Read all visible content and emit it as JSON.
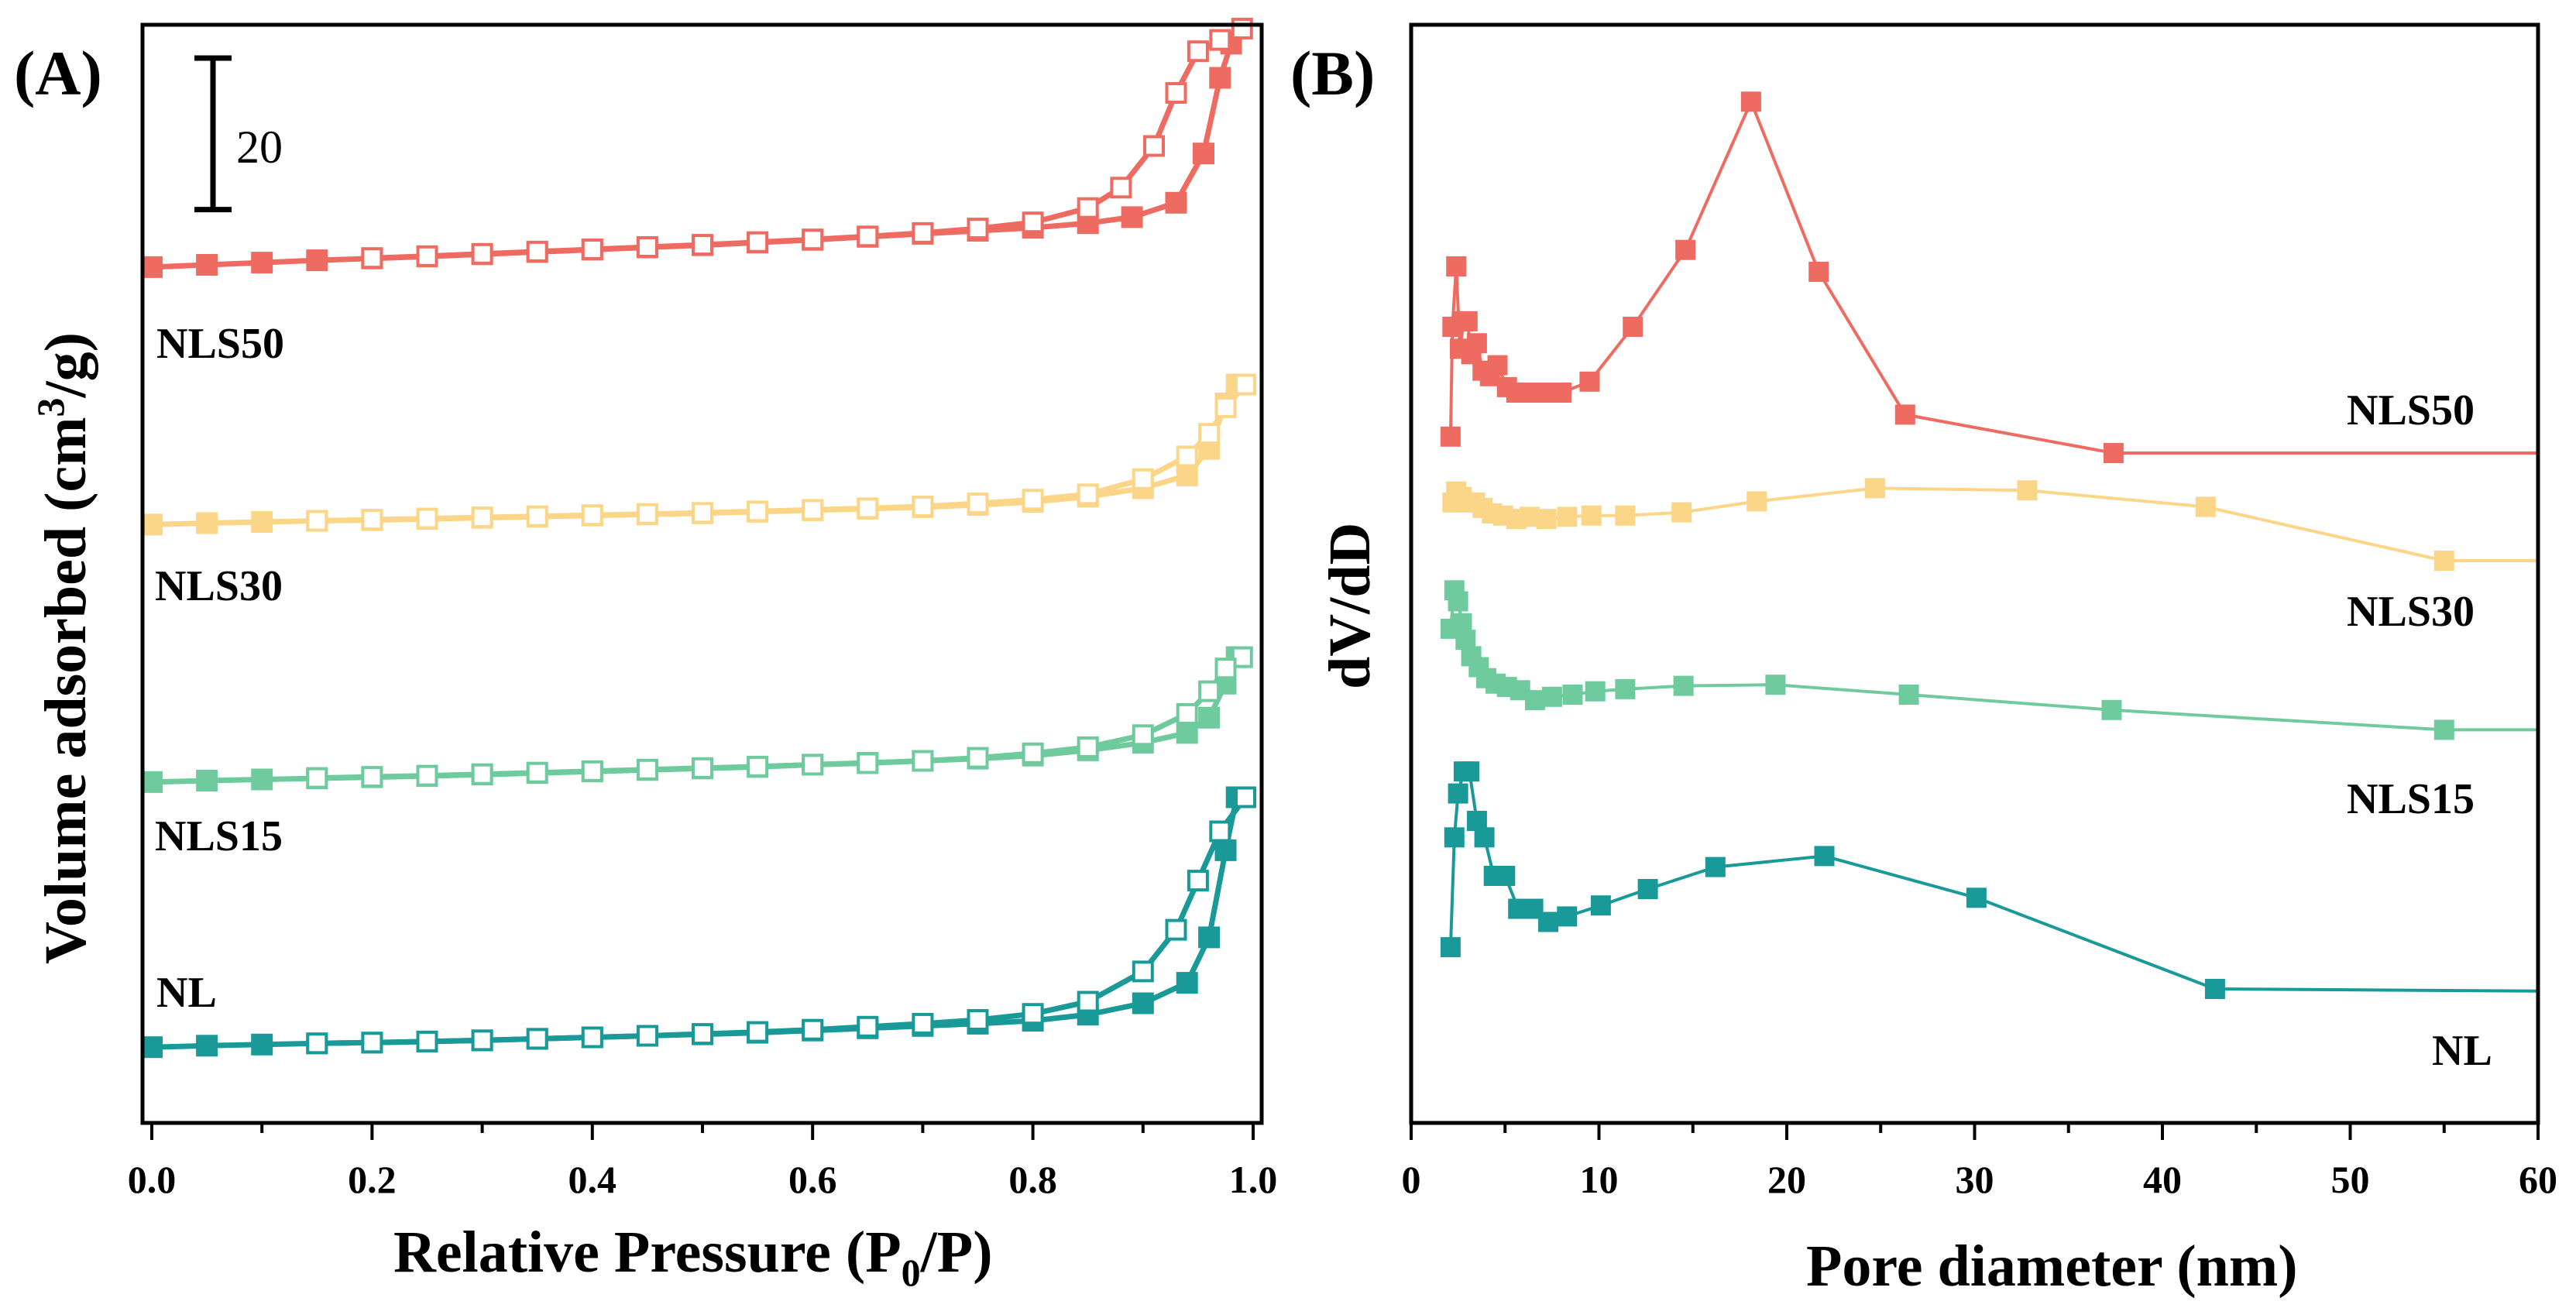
{
  "colors": {
    "NL": "#1a9999",
    "NLS15": "#6fcb9e",
    "NLS30": "#fbd688",
    "NLS50": "#ee6b61"
  },
  "chart_data": [
    {
      "type": "line",
      "panel_label": "(A)",
      "xlabel": "Relative Pressure (P0/P)",
      "xlabel_main": "Relative Pressure (P",
      "xlabel_sub": "0",
      "xlabel_end": "/P)",
      "ylabel": "Volume adsorbed (cm3/g)",
      "ylabel_main": "Volume adsorbed (cm",
      "ylabel_sup": "3",
      "ylabel_end": "/g)",
      "xlim": [
        0,
        1.0
      ],
      "x_ticks": [
        "0.0",
        "0.2",
        "0.4",
        "0.6",
        "0.8",
        "1.0"
      ],
      "y_ticks_visible": false,
      "scale_bar_label": "20",
      "scale_bar_value": 20,
      "ylim": [
        -10,
        135
      ],
      "series": [
        {
          "name": "NL",
          "label": "NL",
          "adsorption": {
            "x": [
              0.0,
              0.05,
              0.1,
              0.15,
              0.2,
              0.25,
              0.3,
              0.35,
              0.4,
              0.45,
              0.5,
              0.55,
              0.6,
              0.65,
              0.7,
              0.75,
              0.8,
              0.85,
              0.9,
              0.94,
              0.96,
              0.975,
              0.985
            ],
            "y": [
              0.0,
              0.2,
              0.35,
              0.5,
              0.6,
              0.75,
              0.9,
              1.1,
              1.3,
              1.5,
              1.7,
              1.9,
              2.2,
              2.5,
              2.8,
              3.1,
              3.5,
              4.3,
              5.8,
              8.5,
              14.5,
              26.0,
              33.0
            ]
          },
          "desorption": {
            "x": [
              0.993,
              0.97,
              0.95,
              0.93,
              0.9,
              0.85,
              0.8,
              0.75,
              0.7,
              0.65,
              0.6,
              0.55,
              0.5,
              0.45,
              0.4,
              0.35,
              0.3,
              0.25,
              0.2,
              0.15
            ],
            "y": [
              33.0,
              28.5,
              22.0,
              15.5,
              10.0,
              6.0,
              4.4,
              3.6,
              3.1,
              2.7,
              2.3,
              2.0,
              1.75,
              1.5,
              1.3,
              1.1,
              0.9,
              0.75,
              0.6,
              0.5
            ]
          }
        },
        {
          "name": "NLS15",
          "label": "NLS15",
          "adsorption": {
            "x": [
              0.0,
              0.05,
              0.1,
              0.15,
              0.2,
              0.25,
              0.3,
              0.35,
              0.4,
              0.45,
              0.5,
              0.55,
              0.6,
              0.65,
              0.7,
              0.75,
              0.8,
              0.85,
              0.9,
              0.94,
              0.96,
              0.975,
              0.985
            ],
            "y": [
              35.0,
              35.2,
              35.35,
              35.5,
              35.65,
              35.8,
              36.0,
              36.2,
              36.4,
              36.6,
              36.8,
              37.0,
              37.3,
              37.55,
              37.8,
              38.1,
              38.5,
              39.2,
              40.2,
              41.5,
              43.5,
              48.0,
              51.5
            ]
          },
          "desorption": {
            "x": [
              0.99,
              0.975,
              0.96,
              0.94,
              0.9,
              0.85,
              0.8,
              0.75,
              0.7,
              0.65,
              0.6,
              0.55,
              0.5,
              0.45,
              0.4,
              0.35,
              0.3,
              0.25,
              0.2,
              0.15
            ],
            "y": [
              51.5,
              50.0,
              47.0,
              44.0,
              41.2,
              39.6,
              38.8,
              38.2,
              37.8,
              37.5,
              37.3,
              37.05,
              36.85,
              36.65,
              36.45,
              36.25,
              36.05,
              35.85,
              35.7,
              35.55
            ]
          }
        },
        {
          "name": "NLS30",
          "label": "NLS30",
          "adsorption": {
            "x": [
              0.0,
              0.05,
              0.1,
              0.15,
              0.2,
              0.25,
              0.3,
              0.35,
              0.4,
              0.45,
              0.5,
              0.55,
              0.6,
              0.65,
              0.7,
              0.75,
              0.8,
              0.85,
              0.9,
              0.94,
              0.96,
              0.975,
              0.985
            ],
            "y": [
              69.0,
              69.2,
              69.35,
              69.5,
              69.6,
              69.75,
              69.9,
              70.05,
              70.2,
              70.35,
              70.5,
              70.7,
              70.9,
              71.1,
              71.3,
              71.6,
              72.0,
              72.7,
              73.8,
              75.5,
              79.0,
              85.0,
              87.5
            ]
          },
          "desorption": {
            "x": [
              0.993,
              0.975,
              0.96,
              0.94,
              0.9,
              0.85,
              0.8,
              0.75,
              0.7,
              0.65,
              0.6,
              0.55,
              0.5,
              0.45,
              0.4,
              0.35,
              0.3,
              0.25,
              0.2,
              0.15
            ],
            "y": [
              87.5,
              84.5,
              81.0,
              78.0,
              75.0,
              73.0,
              72.3,
              71.8,
              71.4,
              71.15,
              70.95,
              70.75,
              70.55,
              70.4,
              70.25,
              70.1,
              69.95,
              69.8,
              69.65,
              69.5
            ]
          }
        },
        {
          "name": "NLS50",
          "label": "NLS50",
          "adsorption": {
            "x": [
              0.0,
              0.05,
              0.1,
              0.15,
              0.2,
              0.25,
              0.3,
              0.35,
              0.4,
              0.45,
              0.5,
              0.55,
              0.6,
              0.65,
              0.7,
              0.75,
              0.8,
              0.85,
              0.89,
              0.93,
              0.955,
              0.97,
              0.98
            ],
            "y": [
              103.0,
              103.3,
              103.6,
              103.9,
              104.15,
              104.4,
              104.7,
              105.0,
              105.3,
              105.6,
              105.9,
              106.25,
              106.6,
              107.0,
              107.4,
              107.8,
              108.2,
              108.8,
              109.6,
              111.5,
              118.0,
              128.0,
              132.5
            ]
          },
          "desorption": {
            "x": [
              0.99,
              0.97,
              0.95,
              0.93,
              0.91,
              0.88,
              0.85,
              0.8,
              0.75,
              0.7,
              0.65,
              0.6,
              0.55,
              0.5,
              0.45,
              0.4,
              0.35,
              0.3,
              0.25,
              0.2
            ],
            "y": [
              134.5,
              133.0,
              131.5,
              126.0,
              119.0,
              113.5,
              110.8,
              108.9,
              108.1,
              107.5,
              107.05,
              106.65,
              106.3,
              105.95,
              105.65,
              105.35,
              105.05,
              104.75,
              104.45,
              104.2
            ]
          }
        }
      ]
    },
    {
      "type": "line",
      "panel_label": "(B)",
      "xlabel": "Pore diameter (nm)",
      "ylabel": "dV/dD",
      "xlim": [
        0,
        60
      ],
      "x_ticks": [
        "0",
        "10",
        "20",
        "30",
        "40",
        "50",
        "60"
      ],
      "y_ticks_visible": false,
      "ylim": [
        0,
        100
      ],
      "series": [
        {
          "name": "NL",
          "label": "NL",
          "x": [
            2.1,
            2.3,
            2.5,
            2.8,
            3.1,
            3.5,
            3.9,
            4.4,
            5.0,
            5.7,
            6.5,
            7.3,
            8.3,
            10.1,
            12.6,
            16.2,
            22.0,
            30.1,
            42.8,
            60.0
          ],
          "y": [
            16.0,
            26.0,
            30.0,
            32.0,
            32.0,
            27.5,
            26.0,
            22.5,
            22.5,
            19.5,
            19.5,
            18.3,
            18.8,
            19.8,
            21.3,
            23.3,
            24.3,
            20.5,
            12.2,
            12.0
          ],
          "markers": [
            true,
            true,
            true,
            true,
            true,
            true,
            true,
            true,
            true,
            true,
            true,
            true,
            true,
            true,
            true,
            true,
            true,
            true,
            true,
            false
          ]
        },
        {
          "name": "NLS15",
          "label": "NLS15",
          "x": [
            2.1,
            2.3,
            2.5,
            2.7,
            2.9,
            3.2,
            3.6,
            4.0,
            4.5,
            5.1,
            5.8,
            6.6,
            7.5,
            8.6,
            9.8,
            11.4,
            14.5,
            19.4,
            26.5,
            37.3,
            55.0,
            60.0
          ],
          "y": [
            45.0,
            48.5,
            47.5,
            45.5,
            44.0,
            42.5,
            41.5,
            40.5,
            40.0,
            39.7,
            39.4,
            38.5,
            38.8,
            39.0,
            39.3,
            39.5,
            39.8,
            39.9,
            39.0,
            37.6,
            35.8,
            35.8
          ],
          "markers": [
            true,
            true,
            true,
            true,
            true,
            true,
            true,
            true,
            true,
            true,
            true,
            true,
            true,
            true,
            true,
            true,
            true,
            true,
            true,
            true,
            true,
            false
          ]
        },
        {
          "name": "NLS30",
          "label": "NLS30",
          "x": [
            2.2,
            2.4,
            2.7,
            3.0,
            3.4,
            3.8,
            4.3,
            4.9,
            5.6,
            6.3,
            7.2,
            8.3,
            9.6,
            11.4,
            14.4,
            18.4,
            24.7,
            32.8,
            42.3,
            55.0,
            60.0
          ],
          "y": [
            56.5,
            57.5,
            57.0,
            56.5,
            56.5,
            56.0,
            55.5,
            55.3,
            55.0,
            55.2,
            55.0,
            55.2,
            55.3,
            55.3,
            55.6,
            56.6,
            57.8,
            57.6,
            56.1,
            51.2,
            51.2
          ],
          "markers": [
            true,
            true,
            true,
            true,
            true,
            true,
            true,
            true,
            true,
            true,
            true,
            true,
            true,
            true,
            true,
            true,
            true,
            true,
            true,
            true,
            false
          ]
        },
        {
          "name": "NLS50",
          "label": "NLS50",
          "x": [
            2.1,
            2.2,
            2.4,
            2.6,
            2.8,
            3.0,
            3.2,
            3.5,
            3.8,
            4.2,
            4.6,
            5.1,
            5.6,
            6.2,
            7.0,
            8.0,
            9.5,
            11.8,
            14.6,
            18.1,
            21.7,
            26.3,
            37.4,
            60.0
          ],
          "y": [
            62.5,
            72.5,
            78.0,
            70.5,
            73.0,
            73.0,
            70.0,
            71.0,
            68.5,
            68.0,
            69.0,
            67.0,
            66.5,
            66.5,
            66.5,
            66.5,
            67.5,
            72.5,
            79.5,
            93.0,
            77.5,
            64.5,
            61.0,
            61.0
          ],
          "markers": [
            true,
            true,
            true,
            true,
            true,
            true,
            true,
            true,
            true,
            true,
            true,
            true,
            true,
            true,
            true,
            true,
            true,
            true,
            true,
            true,
            true,
            true,
            true,
            false
          ]
        }
      ]
    }
  ]
}
